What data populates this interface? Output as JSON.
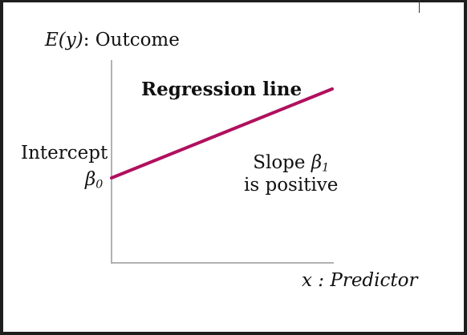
{
  "diagram": {
    "y_axis_label": {
      "prefix": "E(y)",
      "suffix": ": Outcome"
    },
    "x_axis_label": "x : Predictor",
    "regression_title": "Regression line",
    "intercept": {
      "label": "Intercept",
      "symbol": "β",
      "subscript": "0"
    },
    "slope": {
      "label": "Slope",
      "symbol": "β",
      "subscript": "1",
      "note": "is positive"
    }
  },
  "colors": {
    "regression_line": "#b0105e",
    "axes": "#999999",
    "text": "#111111"
  }
}
